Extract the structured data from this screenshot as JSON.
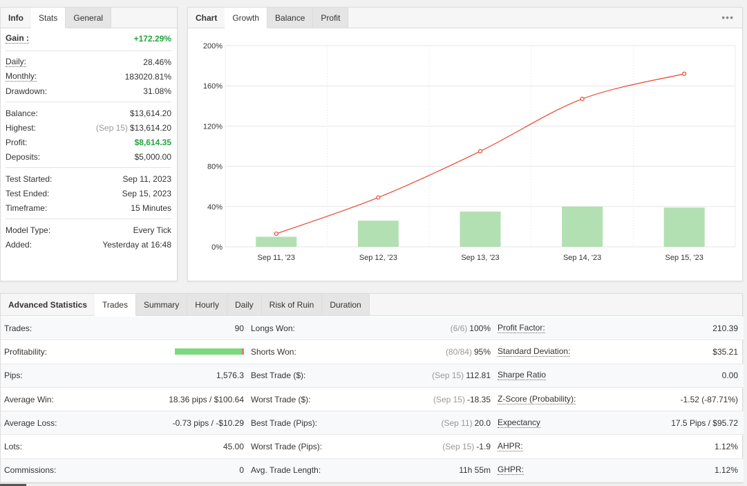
{
  "info": {
    "tabs": [
      "Info",
      "Stats",
      "General"
    ],
    "gain": {
      "label": "Gain :",
      "value": "+172.29%"
    },
    "group1": [
      {
        "label": "Daily:",
        "value": "28.46%",
        "underline": true
      },
      {
        "label": "Monthly:",
        "value": "183020.81%",
        "underline": true
      },
      {
        "label": "Drawdown:",
        "value": "31.08%",
        "underline": false
      }
    ],
    "group2": [
      {
        "label": "Balance:",
        "value": "$13,614.20"
      },
      {
        "label": "Highest:",
        "prefix": "(Sep 15)",
        "value": "$13,614.20"
      },
      {
        "label": "Profit:",
        "value": "$8,614.35",
        "highlight": true
      },
      {
        "label": "Deposits:",
        "value": "$5,000.00"
      }
    ],
    "group3": [
      {
        "label": "Test Started:",
        "value": "Sep 11, 2023"
      },
      {
        "label": "Test Ended:",
        "value": "Sep 15, 2023"
      },
      {
        "label": "Timeframe:",
        "value": "15 Minutes"
      }
    ],
    "group4": [
      {
        "label": "Model Type:",
        "value": "Every Tick"
      },
      {
        "label": "Added:",
        "value": "Yesterday at 16:48"
      }
    ]
  },
  "chart_panel": {
    "tabs": [
      "Chart",
      "Growth",
      "Balance",
      "Profit"
    ],
    "more_icon": "ellipsis-icon"
  },
  "chart_data": {
    "type": "bar",
    "categories": [
      "Sep 11, '23",
      "Sep 12, '23",
      "Sep 13, '23",
      "Sep 14, '23",
      "Sep 15, '23"
    ],
    "series": [
      {
        "type": "bar",
        "values": [
          10,
          26,
          35,
          40,
          39
        ]
      },
      {
        "type": "line",
        "values": [
          13,
          49,
          95,
          147,
          172
        ]
      }
    ],
    "ylim": [
      0,
      200
    ],
    "yticks": [
      "0%",
      "40%",
      "80%",
      "120%",
      "160%",
      "200%"
    ],
    "ytick_values": [
      0,
      40,
      80,
      120,
      160,
      200
    ],
    "grid": true,
    "colors": {
      "bar": "#b3e0b3",
      "line": "#e9452e"
    }
  },
  "advanced": {
    "tabs": [
      "Advanced Statistics",
      "Trades",
      "Summary",
      "Hourly",
      "Daily",
      "Risk of Ruin",
      "Duration"
    ],
    "profitability": {
      "win_fraction": 0.97
    },
    "rows": [
      [
        {
          "label": "Trades:",
          "value": "90"
        },
        {
          "label": "Longs Won:",
          "prefix": "(6/6)",
          "value": "100%"
        },
        {
          "label": "Profit Factor:",
          "value": "210.39",
          "underline": true
        }
      ],
      [
        {
          "label": "Profitability:",
          "value": ""
        },
        {
          "label": "Shorts Won:",
          "prefix": "(80/84)",
          "value": "95%"
        },
        {
          "label": "Standard Deviation:",
          "value": "$35.21",
          "underline": true
        }
      ],
      [
        {
          "label": "Pips:",
          "value": "1,576.3"
        },
        {
          "label": "Best Trade ($):",
          "prefix": "(Sep 15)",
          "value": "112.81"
        },
        {
          "label": "Sharpe Ratio",
          "value": "0.00",
          "underline": true
        }
      ],
      [
        {
          "label": "Average Win:",
          "value": "18.36 pips / $100.64"
        },
        {
          "label": "Worst Trade ($):",
          "prefix": "(Sep 15)",
          "value": "-18.35"
        },
        {
          "label": "Z-Score (Probability):",
          "value": "-1.52 (-87.71%)",
          "underline": true
        }
      ],
      [
        {
          "label": "Average Loss:",
          "value": "-0.73 pips / -$10.29"
        },
        {
          "label": "Best Trade (Pips):",
          "prefix": "(Sep 11)",
          "value": "20.0"
        },
        {
          "label": "Expectancy",
          "value": "17.5 Pips / $95.72",
          "underline": true
        }
      ],
      [
        {
          "label": "Lots:",
          "value": "45.00"
        },
        {
          "label": "Worst Trade (Pips):",
          "prefix": "(Sep 15)",
          "value": "-1.9"
        },
        {
          "label": "AHPR:",
          "value": "1.12%",
          "underline": true
        }
      ],
      [
        {
          "label": "Commissions:",
          "value": "0"
        },
        {
          "label": "Avg. Trade Length:",
          "value": "11h 55m"
        },
        {
          "label": "GHPR:",
          "value": "1.12%",
          "underline": true
        }
      ]
    ]
  }
}
